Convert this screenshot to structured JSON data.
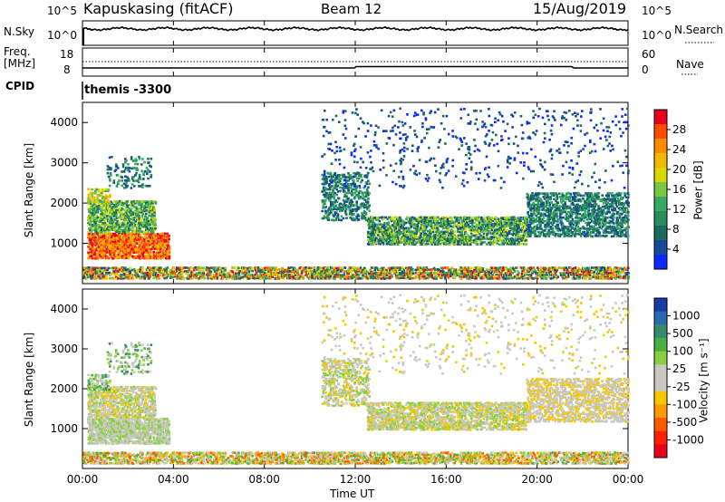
{
  "header": {
    "station": "Kapuskasing (fitACF)",
    "beam": "Beam 12",
    "date": "15/Aug/2019"
  },
  "top_panels": {
    "nsky_label": "N.Sky",
    "nsky_ticks_left": [
      "10^5",
      "10^0"
    ],
    "nsky_ticks_right": [
      "10^5",
      "10^0"
    ],
    "nsearch_label": "N.Search",
    "freq_label_line1": "Freq.",
    "freq_label_line2": "[MHz]",
    "freq_ticks_left": [
      "18",
      "8"
    ],
    "nave_ticks_right": [
      "60",
      "0"
    ],
    "nave_label": "Nave",
    "cpid_label": "CPID",
    "cpid_value": "themis -3300"
  },
  "power_colorbar": {
    "label": "Power [dB]",
    "ticks": [
      "28",
      "24",
      "20",
      "16",
      "12",
      "8",
      "4"
    ],
    "colors": [
      "#e8001a",
      "#ff4a00",
      "#ff8c00",
      "#f5b800",
      "#d8d800",
      "#78c840",
      "#3aa860",
      "#2a8c5a",
      "#1a6a60",
      "#144a98",
      "#0a2aff"
    ]
  },
  "velocity_colorbar": {
    "label": "Velocity [m s⁻¹]",
    "ticks": [
      "1000",
      "500",
      "100",
      "25",
      "-25",
      "-100",
      "-500",
      "-1000"
    ],
    "colors": [
      "#1a3aa8",
      "#2a6ab0",
      "#3a8a70",
      "#48b040",
      "#88d040",
      "#c8c8c0",
      "#c8c8c0",
      "#f5c800",
      "#ff9a00",
      "#ff5a00",
      "#ff2000",
      "#e8001a"
    ]
  },
  "chart_data": [
    {
      "type": "line",
      "panel": "N.Sky / N.Search",
      "x": [
        "00:00",
        "04:00",
        "08:00",
        "12:00",
        "16:00",
        "20:00",
        "00:00"
      ],
      "series": [],
      "yscale": "log",
      "ylim": [
        "10^0",
        "10^5"
      ]
    },
    {
      "type": "line",
      "panel": "Freq / Nave",
      "x": [
        "00:00",
        "04:00",
        "08:00",
        "12:00",
        "16:00",
        "20:00",
        "00:00"
      ],
      "series": [],
      "ylim": [
        8,
        18
      ]
    },
    {
      "type": "heatmap",
      "panel": "Power",
      "xlabel": "",
      "ylabel": "Slant Range [km]",
      "x_ticks": [
        "00:00",
        "04:00",
        "08:00",
        "12:00",
        "16:00",
        "20:00",
        "00:00"
      ],
      "y_ticks": [
        1000,
        2000,
        3000,
        4000
      ],
      "zlabel": "Power [dB]",
      "zlim": [
        0,
        30
      ]
    },
    {
      "type": "heatmap",
      "panel": "Velocity",
      "xlabel": "Time UT",
      "ylabel": "Slant Range [km]",
      "x_ticks": [
        "00:00",
        "04:00",
        "08:00",
        "12:00",
        "16:00",
        "20:00",
        "00:00"
      ],
      "y_ticks": [
        1000,
        2000,
        3000,
        4000
      ],
      "zlabel": "Velocity [m s⁻¹]",
      "zlim": [
        -1000,
        1000
      ]
    }
  ]
}
